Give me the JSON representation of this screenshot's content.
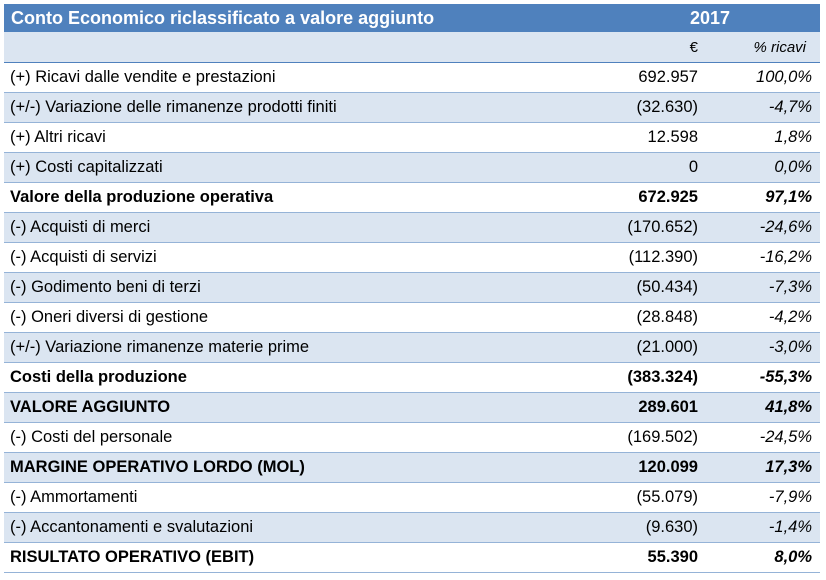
{
  "title": "Conto Economico riclassificato a valore aggiunto",
  "year": "2017",
  "col_euro": "€",
  "col_pct": "% ricavi",
  "colors": {
    "header_bg": "#4f81bd",
    "band_bg": "#dbe5f1",
    "rule": "#95b3d7"
  },
  "rows": [
    {
      "label": "(+) Ricavi dalle vendite e prestazioni",
      "value": "692.957",
      "pct": "100,0%",
      "bold": false
    },
    {
      "label": "(+/-) Variazione delle rimanenze prodotti finiti",
      "value": "(32.630)",
      "pct": "-4,7%",
      "bold": false
    },
    {
      "label": "(+) Altri ricavi",
      "value": "12.598",
      "pct": "1,8%",
      "bold": false
    },
    {
      "label": "(+) Costi capitalizzati",
      "value": "0",
      "pct": "0,0%",
      "bold": false
    },
    {
      "label": "Valore della produzione operativa",
      "value": "672.925",
      "pct": "97,1%",
      "bold": true
    },
    {
      "label": "(-) Acquisti di merci",
      "value": "(170.652)",
      "pct": "-24,6%",
      "bold": false
    },
    {
      "label": "(-) Acquisti di servizi",
      "value": "(112.390)",
      "pct": "-16,2%",
      "bold": false
    },
    {
      "label": "(-) Godimento beni di terzi",
      "value": "(50.434)",
      "pct": "-7,3%",
      "bold": false
    },
    {
      "label": "(-) Oneri diversi di gestione",
      "value": "(28.848)",
      "pct": "-4,2%",
      "bold": false
    },
    {
      "label": "(+/-) Variazione rimanenze materie prime",
      "value": "(21.000)",
      "pct": "-3,0%",
      "bold": false
    },
    {
      "label": "Costi della produzione",
      "value": "(383.324)",
      "pct": "-55,3%",
      "bold": true
    },
    {
      "label": "VALORE AGGIUNTO",
      "value": "289.601",
      "pct": "41,8%",
      "bold": true
    },
    {
      "label": "(-) Costi del personale",
      "value": "(169.502)",
      "pct": "-24,5%",
      "bold": false
    },
    {
      "label": "MARGINE OPERATIVO LORDO (MOL)",
      "value": "120.099",
      "pct": "17,3%",
      "bold": true
    },
    {
      "label": "(-) Ammortamenti",
      "value": "(55.079)",
      "pct": "-7,9%",
      "bold": false
    },
    {
      "label": "(-) Accantonamenti e svalutazioni",
      "value": "(9.630)",
      "pct": "-1,4%",
      "bold": false
    },
    {
      "label": "RISULTATO OPERATIVO (EBIT)",
      "value": "55.390",
      "pct": "8,0%",
      "bold": true
    }
  ]
}
